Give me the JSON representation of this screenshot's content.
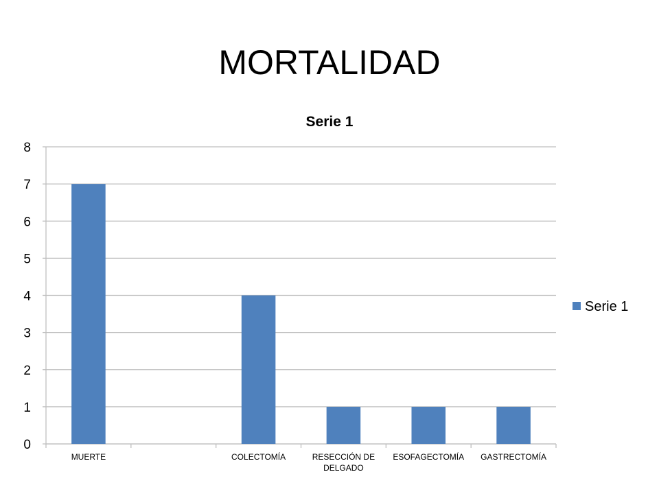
{
  "slide": {
    "title": "MORTALIDAD"
  },
  "chart_data": {
    "type": "bar",
    "title": "Serie 1",
    "categories": [
      "MUERTE",
      "",
      "COLECTOMÍA",
      "RESECCIÓN DE DELGADO",
      "ESOFAGECTOMÍA",
      "GASTRECTOMÍA"
    ],
    "category_lines": [
      [
        "MUERTE"
      ],
      [
        ""
      ],
      [
        "COLECTOMÍA"
      ],
      [
        "RESECCIÓN DE",
        "DELGADO"
      ],
      [
        "ESOFAGECTOMÍA"
      ],
      [
        "GASTRECTOMÍA"
      ]
    ],
    "series": [
      {
        "name": "Serie 1",
        "values": [
          7,
          null,
          4,
          1,
          1,
          1
        ],
        "color": "#4f81bd"
      }
    ],
    "ylim": [
      0,
      8
    ],
    "yticks": [
      0,
      1,
      2,
      3,
      4,
      5,
      6,
      7,
      8
    ],
    "xlabel": "",
    "ylabel": "",
    "grid": true,
    "gridColor": "#bfbfbf",
    "legend": "right"
  }
}
